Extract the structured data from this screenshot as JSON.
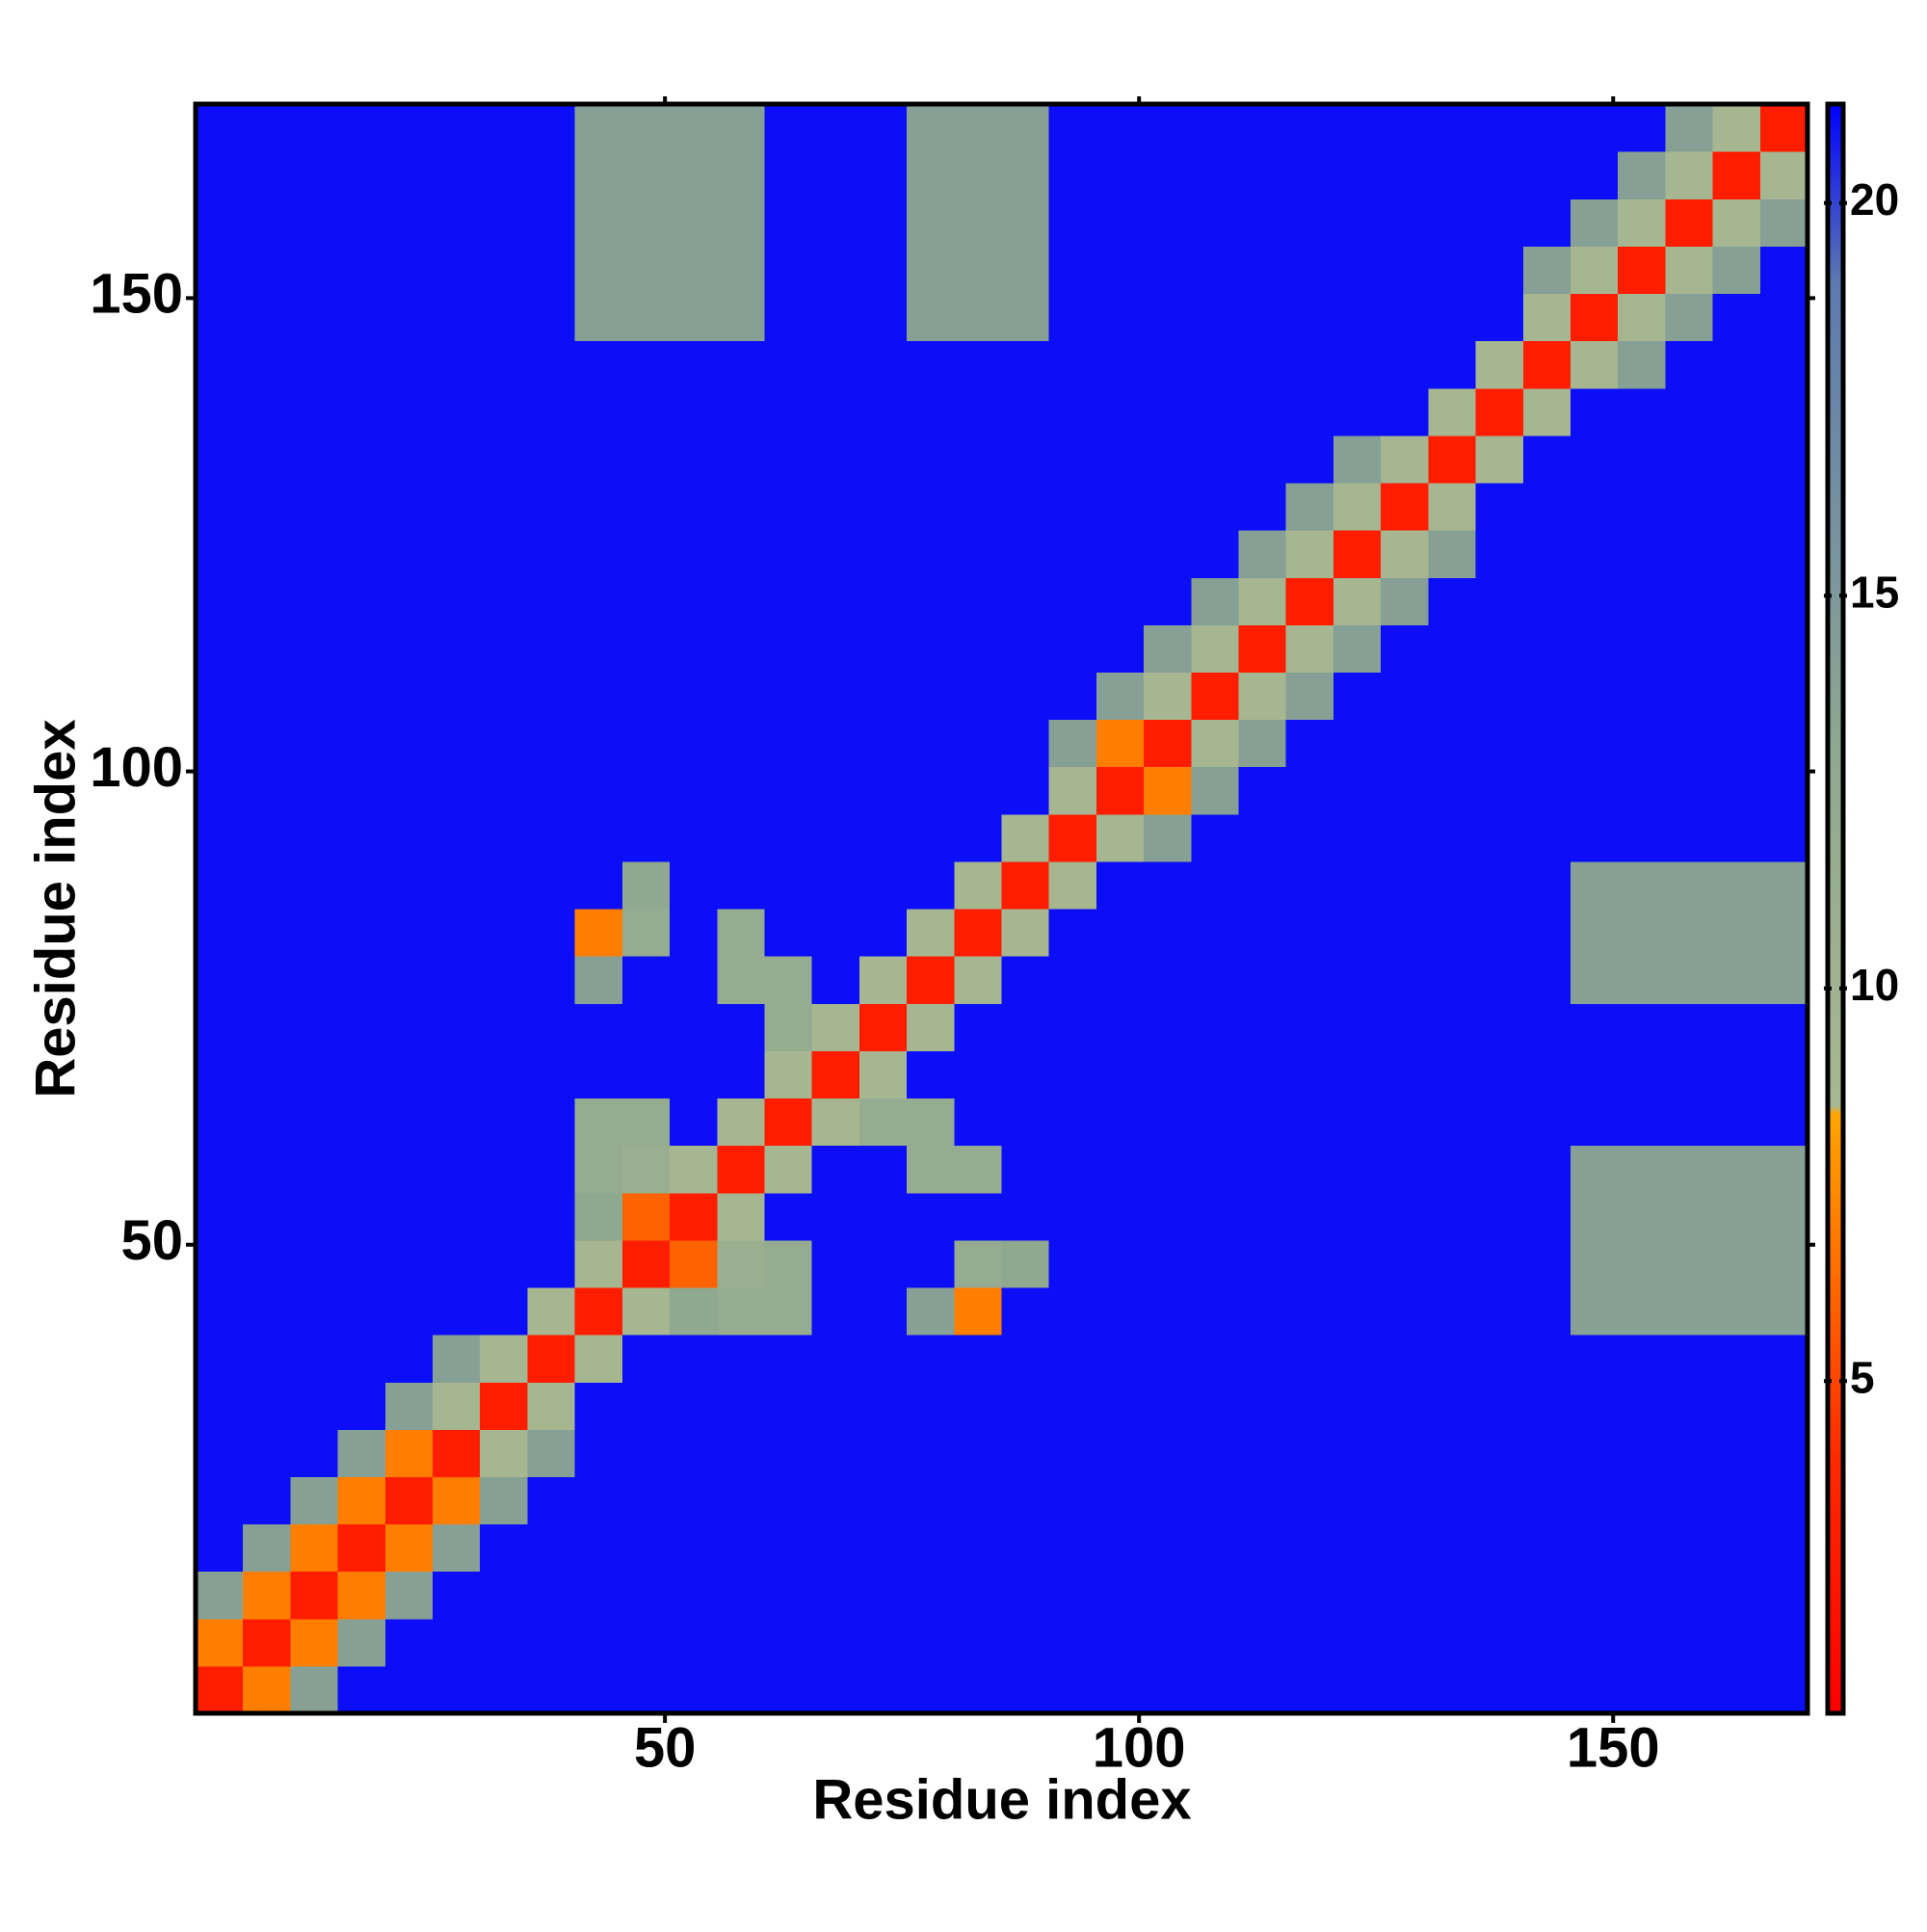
{
  "chart_data": {
    "type": "heatmap",
    "xlabel": "Residue index",
    "ylabel": "Residue index",
    "x": [
      3,
      8,
      13,
      18,
      23,
      28,
      33,
      38,
      43,
      48,
      53,
      58,
      63,
      68,
      73,
      78,
      83,
      88,
      93,
      98,
      103,
      108,
      113,
      118,
      123,
      128,
      133,
      138,
      143,
      148,
      153,
      158,
      163,
      168
    ],
    "y": [
      3,
      8,
      13,
      18,
      23,
      28,
      33,
      38,
      43,
      48,
      53,
      58,
      63,
      68,
      73,
      78,
      83,
      88,
      93,
      98,
      103,
      108,
      113,
      118,
      123,
      128,
      133,
      138,
      143,
      148,
      153,
      158,
      163,
      168
    ],
    "z": [
      [
        3,
        7,
        14,
        21,
        21,
        21,
        21,
        21,
        21,
        21,
        21,
        21,
        21,
        21,
        21,
        21,
        21,
        21,
        21,
        21,
        21,
        21,
        21,
        21,
        21,
        21,
        21,
        21,
        21,
        21,
        21,
        21,
        21,
        21
      ],
      [
        7,
        3,
        7,
        14,
        21,
        21,
        21,
        21,
        21,
        21,
        21,
        21,
        21,
        21,
        21,
        21,
        21,
        21,
        21,
        21,
        21,
        21,
        21,
        21,
        21,
        21,
        21,
        21,
        21,
        21,
        21,
        21,
        21,
        21
      ],
      [
        14,
        7,
        3,
        7,
        14,
        21,
        21,
        21,
        21,
        21,
        21,
        21,
        21,
        21,
        21,
        21,
        21,
        21,
        21,
        21,
        21,
        21,
        21,
        21,
        21,
        21,
        21,
        21,
        21,
        21,
        21,
        21,
        21,
        21
      ],
      [
        21,
        14,
        7,
        3,
        7,
        14,
        21,
        21,
        21,
        21,
        21,
        21,
        21,
        21,
        21,
        21,
        21,
        21,
        21,
        21,
        21,
        21,
        21,
        21,
        21,
        21,
        21,
        21,
        21,
        21,
        21,
        21,
        21,
        21
      ],
      [
        21,
        21,
        14,
        7,
        3,
        7,
        14,
        21,
        21,
        21,
        21,
        21,
        21,
        21,
        21,
        21,
        21,
        21,
        21,
        21,
        21,
        21,
        21,
        21,
        21,
        21,
        21,
        21,
        21,
        21,
        21,
        21,
        21,
        21
      ],
      [
        21,
        21,
        21,
        14,
        7,
        3,
        9,
        14,
        21,
        21,
        21,
        21,
        21,
        21,
        21,
        21,
        21,
        21,
        21,
        21,
        21,
        21,
        21,
        21,
        21,
        21,
        21,
        21,
        21,
        21,
        21,
        21,
        21,
        21
      ],
      [
        21,
        21,
        21,
        21,
        14,
        9,
        3,
        9,
        21,
        21,
        21,
        21,
        21,
        21,
        21,
        21,
        21,
        21,
        21,
        21,
        21,
        21,
        21,
        21,
        21,
        21,
        21,
        21,
        21,
        21,
        21,
        21,
        21,
        21
      ],
      [
        21,
        21,
        21,
        21,
        21,
        14,
        9,
        3,
        9,
        21,
        21,
        21,
        21,
        21,
        21,
        21,
        21,
        21,
        21,
        21,
        21,
        21,
        21,
        21,
        21,
        21,
        21,
        21,
        21,
        21,
        21,
        21,
        21,
        21
      ],
      [
        21,
        21,
        21,
        21,
        21,
        21,
        21,
        9,
        3,
        9,
        13,
        12,
        12,
        21,
        21,
        14,
        7,
        21,
        21,
        21,
        21,
        21,
        21,
        21,
        21,
        21,
        21,
        21,
        21,
        14,
        14,
        14,
        14,
        14
      ],
      [
        21,
        21,
        21,
        21,
        21,
        21,
        21,
        21,
        9,
        3,
        6,
        11,
        12,
        21,
        21,
        21,
        12,
        13,
        21,
        21,
        21,
        21,
        21,
        21,
        21,
        21,
        21,
        21,
        21,
        14,
        14,
        14,
        14,
        14
      ],
      [
        21,
        21,
        21,
        21,
        21,
        21,
        21,
        21,
        13,
        6,
        3,
        9,
        21,
        21,
        21,
        21,
        21,
        21,
        21,
        21,
        21,
        21,
        21,
        21,
        21,
        21,
        21,
        21,
        21,
        14,
        14,
        14,
        14,
        14
      ],
      [
        21,
        21,
        21,
        21,
        21,
        21,
        21,
        21,
        12,
        11,
        9,
        3,
        9,
        21,
        21,
        12,
        12,
        21,
        21,
        21,
        21,
        21,
        21,
        21,
        21,
        21,
        21,
        21,
        21,
        14,
        14,
        14,
        14,
        14
      ],
      [
        21,
        21,
        21,
        21,
        21,
        21,
        21,
        21,
        12,
        12,
        21,
        9,
        3,
        9,
        12,
        12,
        21,
        21,
        21,
        21,
        21,
        21,
        21,
        21,
        21,
        21,
        21,
        21,
        21,
        21,
        21,
        21,
        21,
        21
      ],
      [
        21,
        21,
        21,
        21,
        21,
        21,
        21,
        21,
        21,
        21,
        21,
        21,
        9,
        3,
        9,
        21,
        21,
        21,
        21,
        21,
        21,
        21,
        21,
        21,
        21,
        21,
        21,
        21,
        21,
        21,
        21,
        21,
        21,
        21
      ],
      [
        21,
        21,
        21,
        21,
        21,
        21,
        21,
        21,
        21,
        21,
        21,
        21,
        12,
        9,
        3,
        9,
        21,
        21,
        21,
        21,
        21,
        21,
        21,
        21,
        21,
        21,
        21,
        21,
        21,
        21,
        21,
        21,
        21,
        21
      ],
      [
        21,
        21,
        21,
        21,
        21,
        21,
        21,
        21,
        14,
        21,
        21,
        12,
        12,
        21,
        9,
        3,
        9,
        21,
        21,
        21,
        21,
        21,
        21,
        21,
        21,
        21,
        21,
        21,
        21,
        14,
        14,
        14,
        14,
        14
      ],
      [
        21,
        21,
        21,
        21,
        21,
        21,
        21,
        21,
        7,
        12,
        21,
        12,
        21,
        21,
        21,
        9,
        3,
        9,
        21,
        21,
        21,
        21,
        21,
        21,
        21,
        21,
        21,
        21,
        21,
        14,
        14,
        14,
        14,
        14
      ],
      [
        21,
        21,
        21,
        21,
        21,
        21,
        21,
        21,
        21,
        13,
        21,
        21,
        21,
        21,
        21,
        21,
        9,
        3,
        9,
        21,
        21,
        21,
        21,
        21,
        21,
        21,
        21,
        21,
        21,
        14,
        14,
        14,
        14,
        14
      ],
      [
        21,
        21,
        21,
        21,
        21,
        21,
        21,
        21,
        21,
        21,
        21,
        21,
        21,
        21,
        21,
        21,
        21,
        9,
        3,
        9,
        14,
        21,
        21,
        21,
        21,
        21,
        21,
        21,
        21,
        21,
        21,
        21,
        21,
        21
      ],
      [
        21,
        21,
        21,
        21,
        21,
        21,
        21,
        21,
        21,
        21,
        21,
        21,
        21,
        21,
        21,
        21,
        21,
        21,
        9,
        3,
        7,
        14,
        21,
        21,
        21,
        21,
        21,
        21,
        21,
        21,
        21,
        21,
        21,
        21
      ],
      [
        21,
        21,
        21,
        21,
        21,
        21,
        21,
        21,
        21,
        21,
        21,
        21,
        21,
        21,
        21,
        21,
        21,
        21,
        14,
        7,
        3,
        9,
        14,
        21,
        21,
        21,
        21,
        21,
        21,
        21,
        21,
        21,
        21,
        21
      ],
      [
        21,
        21,
        21,
        21,
        21,
        21,
        21,
        21,
        21,
        21,
        21,
        21,
        21,
        21,
        21,
        21,
        21,
        21,
        21,
        14,
        9,
        3,
        9,
        14,
        21,
        21,
        21,
        21,
        21,
        21,
        21,
        21,
        21,
        21
      ],
      [
        21,
        21,
        21,
        21,
        21,
        21,
        21,
        21,
        21,
        21,
        21,
        21,
        21,
        21,
        21,
        21,
        21,
        21,
        21,
        21,
        14,
        9,
        3,
        9,
        14,
        21,
        21,
        21,
        21,
        21,
        21,
        21,
        21,
        21
      ],
      [
        21,
        21,
        21,
        21,
        21,
        21,
        21,
        21,
        21,
        21,
        21,
        21,
        21,
        21,
        21,
        21,
        21,
        21,
        21,
        21,
        21,
        14,
        9,
        3,
        9,
        14,
        21,
        21,
        21,
        21,
        21,
        21,
        21,
        21
      ],
      [
        21,
        21,
        21,
        21,
        21,
        21,
        21,
        21,
        21,
        21,
        21,
        21,
        21,
        21,
        21,
        21,
        21,
        21,
        21,
        21,
        21,
        21,
        14,
        9,
        3,
        9,
        14,
        21,
        21,
        21,
        21,
        21,
        21,
        21
      ],
      [
        21,
        21,
        21,
        21,
        21,
        21,
        21,
        21,
        21,
        21,
        21,
        21,
        21,
        21,
        21,
        21,
        21,
        21,
        21,
        21,
        21,
        21,
        21,
        14,
        9,
        3,
        9,
        21,
        21,
        21,
        21,
        21,
        21,
        21
      ],
      [
        21,
        21,
        21,
        21,
        21,
        21,
        21,
        21,
        21,
        21,
        21,
        21,
        21,
        21,
        21,
        21,
        21,
        21,
        21,
        21,
        21,
        21,
        21,
        21,
        14,
        9,
        3,
        9,
        21,
        21,
        21,
        21,
        21,
        21
      ],
      [
        21,
        21,
        21,
        21,
        21,
        21,
        21,
        21,
        21,
        21,
        21,
        21,
        21,
        21,
        21,
        21,
        21,
        21,
        21,
        21,
        21,
        21,
        21,
        21,
        21,
        21,
        9,
        3,
        9,
        21,
        21,
        21,
        21,
        21
      ],
      [
        21,
        21,
        21,
        21,
        21,
        21,
        21,
        21,
        21,
        21,
        21,
        21,
        21,
        21,
        21,
        21,
        21,
        21,
        21,
        21,
        21,
        21,
        21,
        21,
        21,
        21,
        21,
        9,
        3,
        9,
        14,
        21,
        21,
        21
      ],
      [
        21,
        21,
        21,
        21,
        21,
        21,
        21,
        21,
        14,
        14,
        14,
        14,
        21,
        21,
        21,
        14,
        14,
        14,
        21,
        21,
        21,
        21,
        21,
        21,
        21,
        21,
        21,
        21,
        9,
        3,
        9,
        14,
        21,
        21
      ],
      [
        21,
        21,
        21,
        21,
        21,
        21,
        21,
        21,
        14,
        14,
        14,
        14,
        21,
        21,
        21,
        14,
        14,
        14,
        21,
        21,
        21,
        21,
        21,
        21,
        21,
        21,
        21,
        21,
        14,
        9,
        3,
        9,
        14,
        21
      ],
      [
        21,
        21,
        21,
        21,
        21,
        21,
        21,
        21,
        14,
        14,
        14,
        14,
        21,
        21,
        21,
        14,
        14,
        14,
        21,
        21,
        21,
        21,
        21,
        21,
        21,
        21,
        21,
        21,
        21,
        14,
        9,
        3,
        9,
        14
      ],
      [
        21,
        21,
        21,
        21,
        21,
        21,
        21,
        21,
        14,
        14,
        14,
        14,
        21,
        21,
        21,
        14,
        14,
        14,
        21,
        21,
        21,
        21,
        21,
        21,
        21,
        21,
        21,
        21,
        21,
        21,
        14,
        9,
        3,
        9
      ],
      [
        21,
        21,
        21,
        21,
        21,
        21,
        21,
        21,
        14,
        14,
        14,
        14,
        21,
        21,
        21,
        14,
        14,
        14,
        21,
        21,
        21,
        21,
        21,
        21,
        21,
        21,
        21,
        21,
        21,
        21,
        21,
        14,
        9,
        3
      ]
    ],
    "xlim": [
      0.5,
      170.5
    ],
    "ylim": [
      0.5,
      170.5
    ],
    "xticks": [
      50,
      100,
      150
    ],
    "yticks": [
      50,
      100,
      150
    ],
    "colorbar": {
      "lim": [
        0.77,
        21.26
      ],
      "ticks": [
        5,
        10,
        15,
        20
      ]
    },
    "colorscale": [
      [
        0.77,
        "#ff0000"
      ],
      [
        4,
        "#ff2a00"
      ],
      [
        8.4,
        "#ffa500"
      ],
      [
        8.5,
        "#a8b890"
      ],
      [
        13,
        "#8fa890"
      ],
      [
        19,
        "#5c7ab0"
      ],
      [
        21.26,
        "#0000ff"
      ]
    ]
  }
}
